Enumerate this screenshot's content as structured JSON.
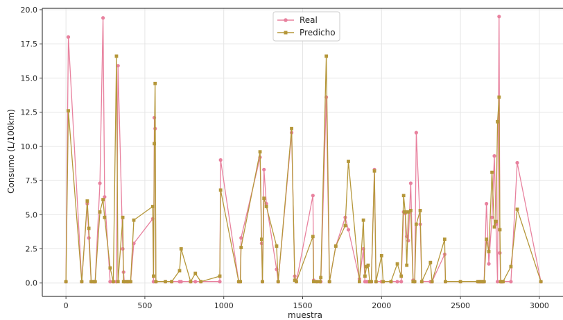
{
  "chart_data": {
    "type": "line",
    "title": "",
    "xlabel": "muestra",
    "ylabel": "Consumo (L/100km)",
    "xlim": [
      -150,
      3150
    ],
    "ylim": [
      -0.98,
      20.1
    ],
    "xticks": [
      "0",
      "500",
      "1000",
      "1500",
      "2000",
      "2500",
      "3000"
    ],
    "xtick_values": [
      0,
      500,
      1000,
      1500,
      2000,
      2500,
      3000
    ],
    "yticks": [
      "0.0",
      "2.5",
      "5.0",
      "7.5",
      "10.0",
      "12.5",
      "15.0",
      "17.5",
      "20.0"
    ],
    "ytick_values": [
      0,
      2.5,
      5,
      7.5,
      10,
      12.5,
      15,
      17.5,
      20
    ],
    "grid": true,
    "legend_position": "top-center",
    "colors": {
      "Real": "#e8819e",
      "Predicho": "#b5973a",
      "grid": "#e5e5e5",
      "axis": "#444444"
    },
    "x": [
      0,
      15,
      100,
      135,
      145,
      160,
      175,
      185,
      215,
      235,
      245,
      280,
      300,
      320,
      330,
      360,
      365,
      370,
      385,
      395,
      410,
      430,
      550,
      555,
      560,
      565,
      570,
      630,
      670,
      720,
      730,
      790,
      820,
      855,
      975,
      980,
      1095,
      1105,
      1110,
      1230,
      1240,
      1245,
      1255,
      1270,
      1335,
      1345,
      1430,
      1450,
      1460,
      1565,
      1570,
      1590,
      1610,
      1615,
      1650,
      1670,
      1710,
      1770,
      1790,
      1860,
      1885,
      1895,
      1905,
      1915,
      1925,
      1935,
      1955,
      1965,
      2000,
      2010,
      2060,
      2100,
      2125,
      2140,
      2150,
      2160,
      2170,
      2185,
      2200,
      2210,
      2220,
      2245,
      2255,
      2310,
      2320,
      2400,
      2405,
      2500,
      2610,
      2620,
      2630,
      2640,
      2650,
      2665,
      2680,
      2700,
      2715,
      2725,
      2735,
      2745,
      2750,
      2755,
      2760,
      2770,
      2820,
      2860,
      3010
    ],
    "series": [
      {
        "name": "Real",
        "values": [
          0.1,
          18.0,
          0.1,
          5.8,
          3.3,
          0.1,
          0.1,
          0.1,
          7.3,
          19.4,
          6.3,
          0.1,
          0.1,
          0.1,
          15.9,
          2.5,
          0.8,
          0.1,
          0.1,
          0.1,
          0.1,
          2.9,
          4.7,
          0.1,
          12.1,
          11.3,
          0.1,
          0.1,
          0.1,
          0.1,
          0.1,
          0.1,
          0.1,
          0.1,
          0.1,
          9.0,
          0.1,
          0.1,
          3.3,
          9.2,
          2.9,
          0.1,
          8.3,
          5.8,
          1.0,
          0.1,
          11.0,
          0.5,
          0.1,
          6.4,
          0.2,
          0.1,
          0.1,
          0.1,
          13.6,
          0.1,
          2.7,
          4.8,
          3.9,
          0.3,
          2.5,
          0.1,
          0.1,
          0.1,
          0.1,
          0.1,
          8.3,
          0.1,
          0.1,
          0.1,
          0.1,
          0.1,
          0.1,
          5.2,
          5.1,
          3.4,
          3.1,
          7.3,
          0.2,
          0.1,
          11.0,
          4.3,
          0.1,
          0.1,
          0.1,
          2.1,
          0.1,
          0.1,
          0.1,
          0.1,
          0.1,
          0.1,
          0.1,
          5.8,
          1.4,
          4.8,
          9.3,
          4.3,
          0.1,
          19.5,
          2.2,
          0.1,
          0.1,
          0.1,
          0.1,
          8.8,
          0.1
        ]
      },
      {
        "name": "Predicho",
        "values": [
          0.1,
          12.6,
          0.1,
          6.0,
          4.0,
          0.1,
          0.1,
          0.1,
          5.2,
          6.1,
          4.8,
          1.1,
          0.1,
          16.6,
          0.1,
          4.8,
          0.1,
          0.1,
          0.1,
          0.1,
          0.1,
          4.6,
          5.6,
          0.5,
          10.2,
          14.6,
          0.1,
          0.1,
          0.1,
          0.9,
          2.5,
          0.1,
          0.7,
          0.1,
          0.5,
          6.8,
          0.1,
          0.1,
          2.6,
          9.6,
          3.2,
          0.1,
          6.2,
          5.6,
          2.7,
          0.1,
          11.3,
          0.2,
          0.1,
          3.4,
          0.1,
          0.1,
          0.1,
          0.4,
          16.6,
          0.1,
          2.7,
          4.2,
          8.9,
          0.1,
          4.6,
          0.5,
          1.2,
          1.3,
          0.1,
          0.1,
          8.2,
          0.1,
          2.0,
          0.1,
          0.1,
          1.4,
          0.5,
          6.4,
          5.2,
          1.3,
          5.2,
          5.3,
          0.1,
          0.1,
          4.3,
          5.3,
          0.1,
          1.5,
          0.1,
          3.2,
          0.1,
          0.1,
          0.1,
          0.1,
          0.1,
          0.1,
          0.1,
          3.2,
          2.3,
          8.1,
          4.1,
          4.5,
          11.8,
          13.6,
          3.9,
          0.1,
          0.1,
          0.1,
          1.2,
          5.4,
          0.1
        ]
      }
    ]
  }
}
